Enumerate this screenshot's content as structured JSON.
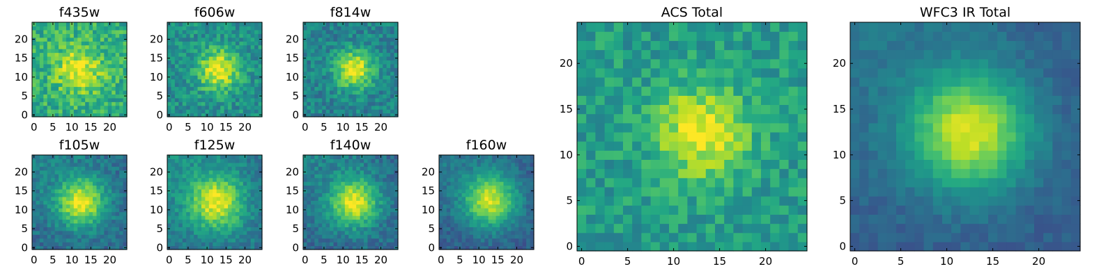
{
  "chart_data": [
    {
      "type": "heatmap",
      "title": "f435w",
      "colormap": "viridis",
      "grid_size": 25,
      "xlim": [
        -0.5,
        24.5
      ],
      "ylim": [
        -0.5,
        24.5
      ],
      "xticks": [
        0,
        5,
        10,
        15,
        20
      ],
      "yticks": [
        0,
        5,
        10,
        15,
        20
      ],
      "source_center": [
        12,
        12
      ],
      "source_peak": 0.35,
      "source_width": 4.5,
      "background_level": 0.62,
      "noise": 0.16,
      "seed": 11
    },
    {
      "type": "heatmap",
      "title": "f606w",
      "colormap": "viridis",
      "grid_size": 25,
      "xlim": [
        -0.5,
        24.5
      ],
      "ylim": [
        -0.5,
        24.5
      ],
      "xticks": [
        0,
        5,
        10,
        15,
        20
      ],
      "yticks": [
        0,
        5,
        10,
        15,
        20
      ],
      "source_center": [
        13,
        12
      ],
      "source_peak": 0.5,
      "source_width": 3.8,
      "background_level": 0.5,
      "noise": 0.14,
      "seed": 23
    },
    {
      "type": "heatmap",
      "title": "f814w",
      "colormap": "viridis",
      "grid_size": 25,
      "xlim": [
        -0.5,
        24.5
      ],
      "ylim": [
        -0.5,
        24.5
      ],
      "xticks": [
        0,
        5,
        10,
        15,
        20
      ],
      "yticks": [
        0,
        5,
        10,
        15,
        20
      ],
      "source_center": [
        13,
        12
      ],
      "source_peak": 0.55,
      "source_width": 3.5,
      "background_level": 0.45,
      "noise": 0.13,
      "seed": 37
    },
    {
      "type": "heatmap",
      "title": "f105w",
      "colormap": "viridis",
      "grid_size": 25,
      "xlim": [
        -0.5,
        24.5
      ],
      "ylim": [
        -0.5,
        24.5
      ],
      "xticks": [
        0,
        5,
        10,
        15,
        20
      ],
      "yticks": [
        0,
        5,
        10,
        15,
        20
      ],
      "source_center": [
        12.5,
        12
      ],
      "source_peak": 0.6,
      "source_width": 4.5,
      "background_level": 0.35,
      "noise": 0.1,
      "seed": 41
    },
    {
      "type": "heatmap",
      "title": "f125w",
      "colormap": "viridis",
      "grid_size": 25,
      "xlim": [
        -0.5,
        24.5
      ],
      "ylim": [
        -0.5,
        24.5
      ],
      "xticks": [
        0,
        5,
        10,
        15,
        20
      ],
      "yticks": [
        0,
        5,
        10,
        15,
        20
      ],
      "source_center": [
        12.5,
        12
      ],
      "source_peak": 0.55,
      "source_width": 5,
      "background_level": 0.4,
      "noise": 0.1,
      "seed": 53
    },
    {
      "type": "heatmap",
      "title": "f140w",
      "colormap": "viridis",
      "grid_size": 25,
      "xlim": [
        -0.5,
        24.5
      ],
      "ylim": [
        -0.5,
        24.5
      ],
      "xticks": [
        0,
        5,
        10,
        15,
        20
      ],
      "yticks": [
        0,
        5,
        10,
        15,
        20
      ],
      "source_center": [
        13,
        12
      ],
      "source_peak": 0.6,
      "source_width": 4.5,
      "background_level": 0.35,
      "noise": 0.1,
      "seed": 67
    },
    {
      "type": "heatmap",
      "title": "f160w",
      "colormap": "viridis",
      "grid_size": 25,
      "xlim": [
        -0.5,
        24.5
      ],
      "ylim": [
        -0.5,
        24.5
      ],
      "xticks": [
        0,
        5,
        10,
        15,
        20
      ],
      "yticks": [
        0,
        5,
        10,
        15,
        20
      ],
      "source_center": [
        13,
        12.5
      ],
      "source_peak": 0.6,
      "source_width": 5,
      "background_level": 0.3,
      "noise": 0.08,
      "seed": 79
    },
    {
      "type": "heatmap",
      "title": "ACS Total",
      "colormap": "viridis",
      "grid_size": 25,
      "xlim": [
        -0.5,
        24.5
      ],
      "ylim": [
        -0.5,
        24.5
      ],
      "xticks": [
        0,
        5,
        10,
        15,
        20
      ],
      "yticks": [
        0,
        5,
        10,
        15,
        20
      ],
      "source_center": [
        13,
        12.5
      ],
      "source_peak": 0.45,
      "source_width": 3.5,
      "background_level": 0.55,
      "noise": 0.13,
      "seed": 97
    },
    {
      "type": "heatmap",
      "title": "WFC3 IR Total",
      "colormap": "viridis",
      "grid_size": 25,
      "xlim": [
        -0.5,
        24.5
      ],
      "ylim": [
        -0.5,
        24.5
      ],
      "xticks": [
        0,
        5,
        10,
        15,
        20
      ],
      "yticks": [
        0,
        5,
        10,
        15,
        20
      ],
      "source_center": [
        12.5,
        12.5
      ],
      "source_peak": 0.62,
      "source_width": 4.5,
      "background_level": 0.3,
      "noise": 0.05,
      "seed": 113
    }
  ]
}
